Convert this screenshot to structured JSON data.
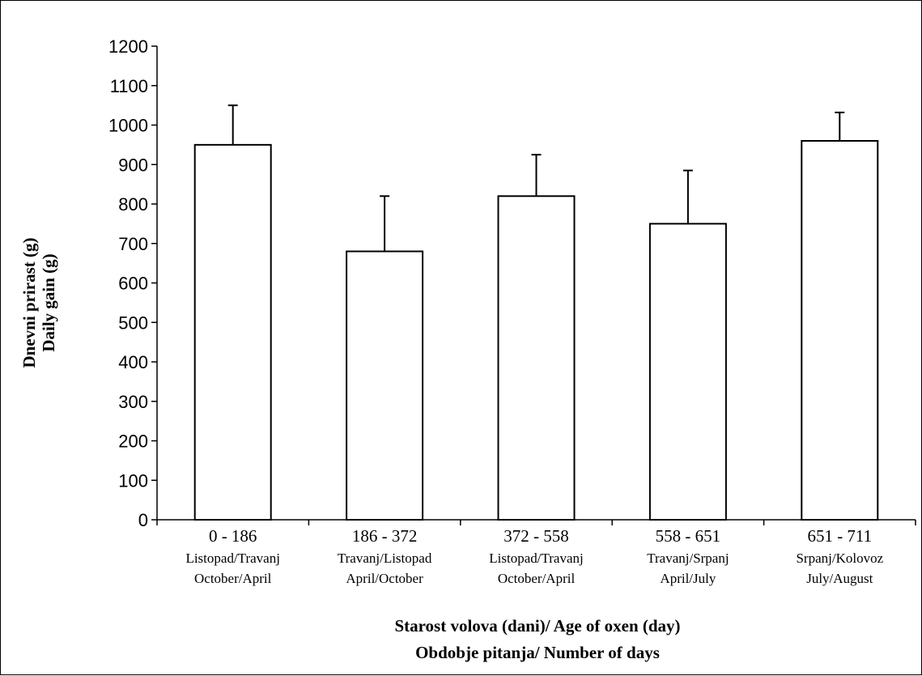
{
  "chart_data": {
    "type": "bar",
    "title": "",
    "ylabel_lines": [
      "Dnevni prirast (g)",
      "Daily gain (g)"
    ],
    "xlabel_lines": [
      "Starost volova (dani)/ Age of oxen (day)",
      "Obdobje pitanja/ Number of days"
    ],
    "ylim": [
      0,
      1200
    ],
    "yticks": [
      0,
      100,
      200,
      300,
      400,
      500,
      600,
      700,
      800,
      900,
      1000,
      1100,
      1200
    ],
    "grid": false,
    "legend": "none",
    "categories": [
      {
        "range": "0 - 186",
        "sub1": "Listopad/Travanj",
        "sub2": "October/April"
      },
      {
        "range": "186 - 372",
        "sub1": "Travanj/Listopad",
        "sub2": "April/October"
      },
      {
        "range": "372 - 558",
        "sub1": "Listopad/Travanj",
        "sub2": "October/April"
      },
      {
        "range": "558 - 651",
        "sub1": "Travanj/Srpanj",
        "sub2": "April/July"
      },
      {
        "range": "651 - 711",
        "sub1": "Srpanj/Kolovoz",
        "sub2": "July/August"
      }
    ],
    "values": [
      950,
      680,
      820,
      750,
      960
    ],
    "error_upper": [
      1050,
      820,
      925,
      885,
      1032
    ],
    "bar_fill": "#ffffff",
    "bar_stroke": "#000000"
  }
}
